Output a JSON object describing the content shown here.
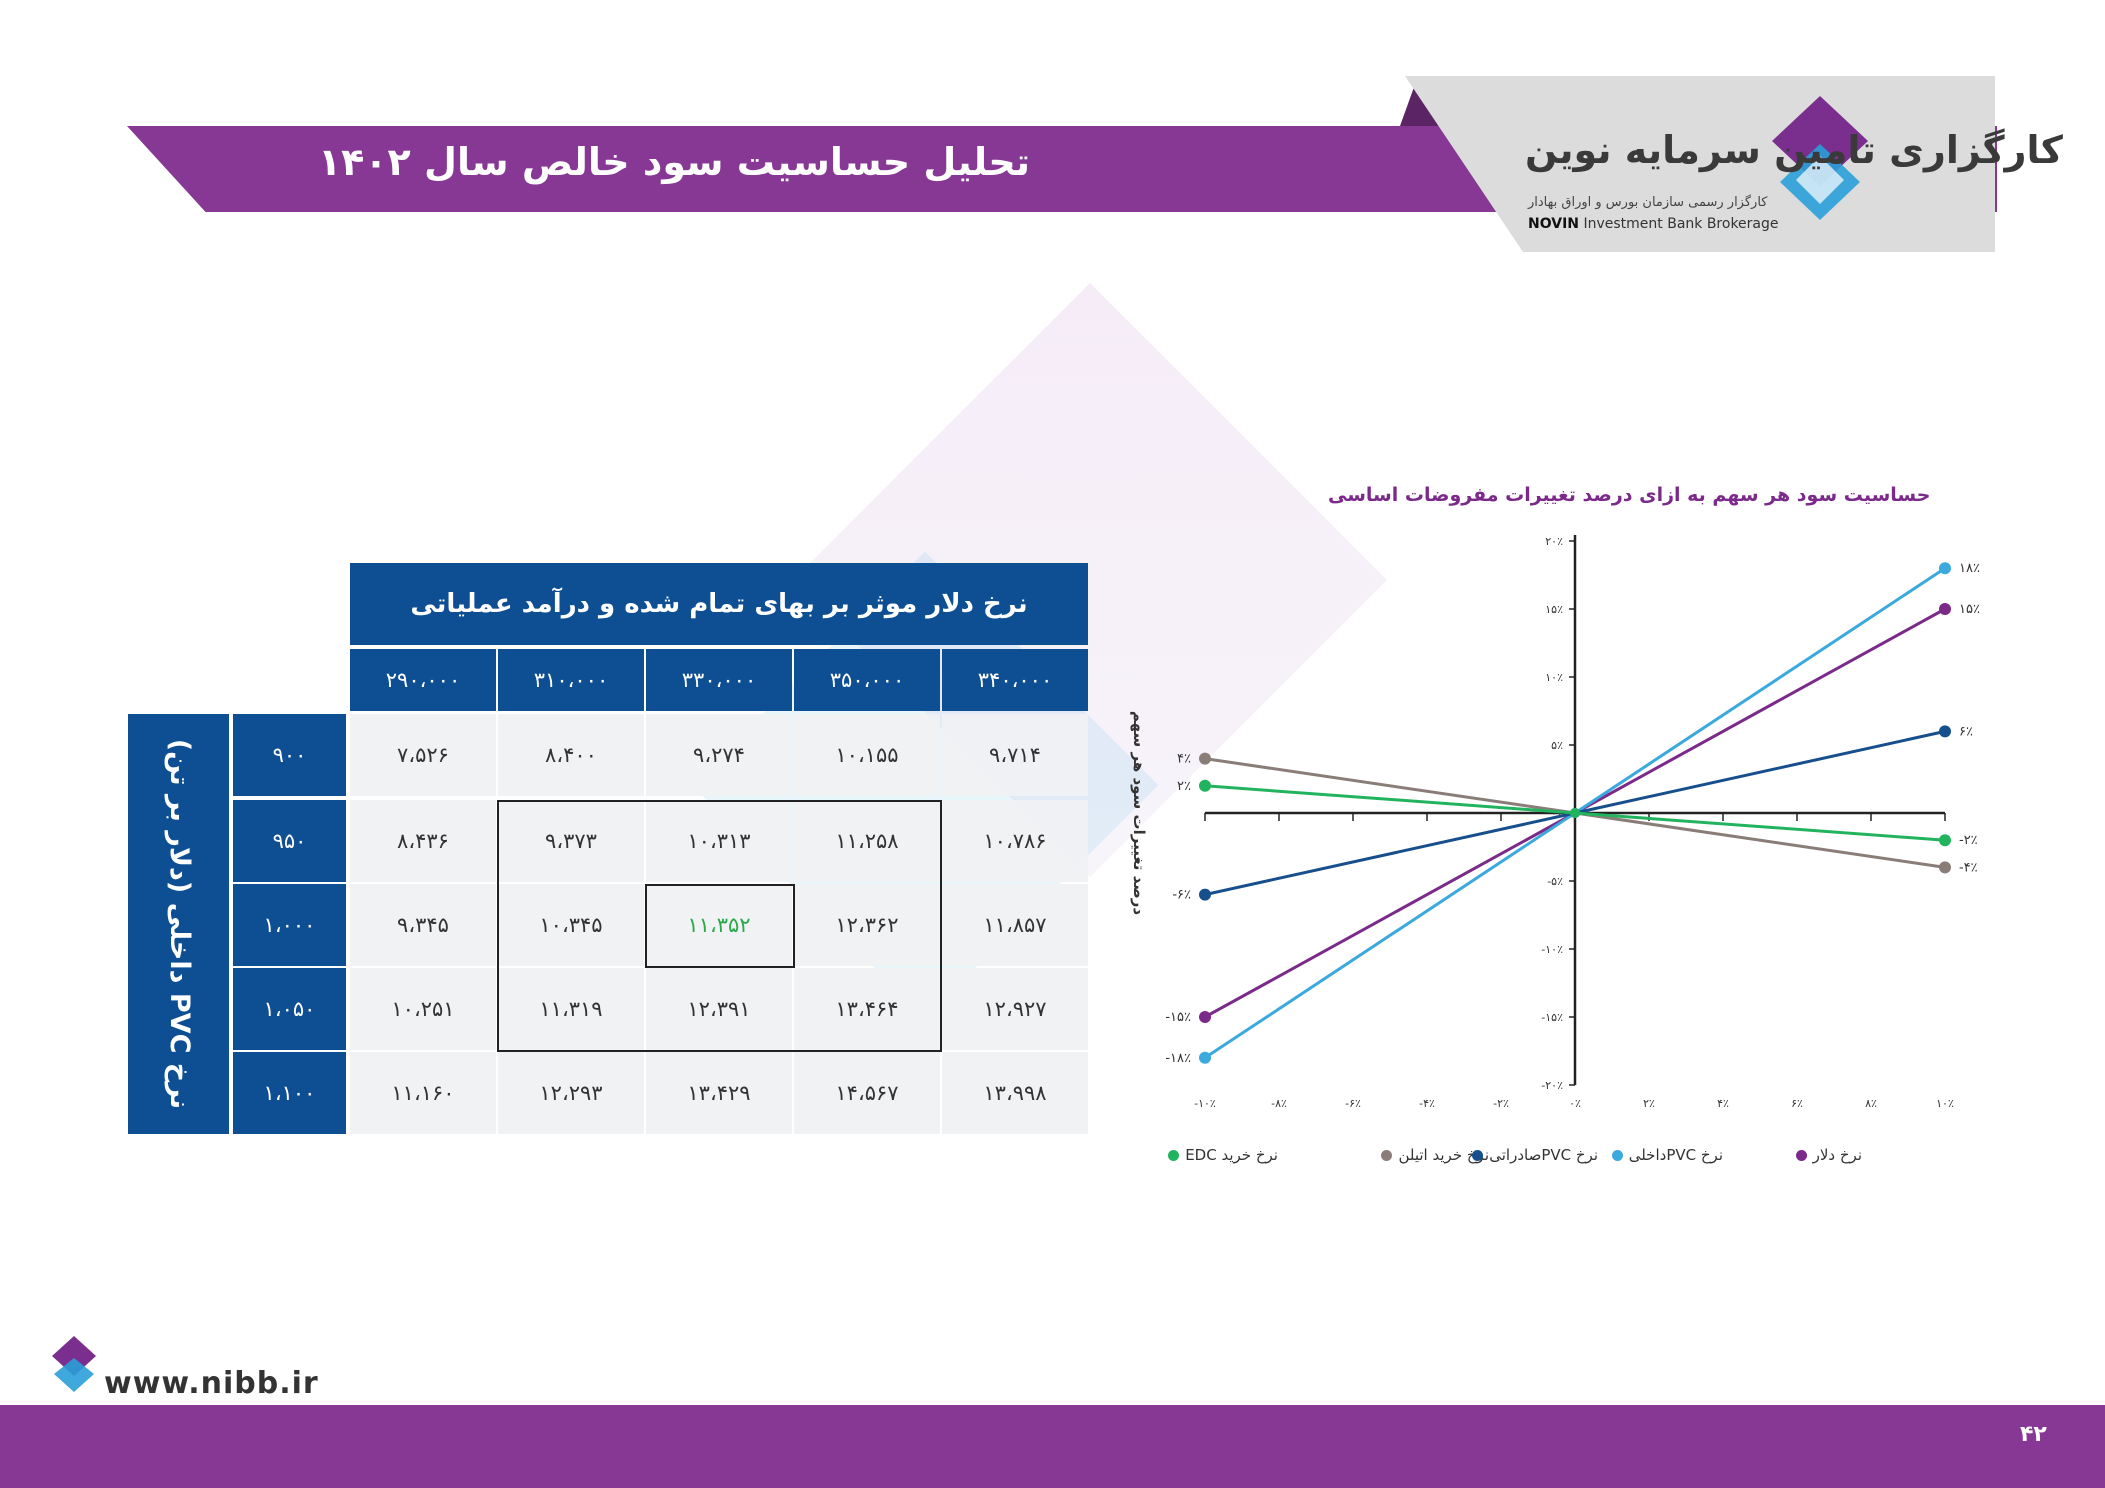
{
  "header": {
    "title": "تحلیل حساسیت سود خالص سال ۱۴۰۲"
  },
  "logo": {
    "name": "کارگزاری تامین سرمایه نوین",
    "subtitle": "کارگزار رسمی سازمان بورس و اوراق بهادار",
    "english_bold": "NOVIN",
    "english_rest": "Investment Bank Brokerage"
  },
  "footer": {
    "url": "www.nibb.ir",
    "page": "۴۲"
  },
  "table": {
    "header": "نرخ دلار موثر بر بهای تمام شده و درآمد عملیاتی",
    "row_axis_label": "نرخ PVC داخلی (دلار بر تن)",
    "columns": [
      "۲۹۰،۰۰۰",
      "۳۱۰،۰۰۰",
      "۳۳۰،۰۰۰",
      "۳۵۰،۰۰۰",
      "۳۴۰،۰۰۰"
    ],
    "rows": [
      {
        "label": "۹۰۰",
        "cells": [
          "۷،۵۲۶",
          "۸،۴۰۰",
          "۹،۲۷۴",
          "۱۰،۱۵۵",
          "۹،۷۱۴"
        ]
      },
      {
        "label": "۹۵۰",
        "cells": [
          "۸،۴۳۶",
          "۹،۳۷۳",
          "۱۰،۳۱۳",
          "۱۱،۲۵۸",
          "۱۰،۷۸۶"
        ]
      },
      {
        "label": "۱،۰۰۰",
        "cells": [
          "۹،۳۴۵",
          "۱۰،۳۴۵",
          "۱۱،۳۵۲",
          "۱۲،۳۶۲",
          "۱۱،۸۵۷"
        ]
      },
      {
        "label": "۱،۰۵۰",
        "cells": [
          "۱۰،۲۵۱",
          "۱۱،۳۱۹",
          "۱۲،۳۹۱",
          "۱۳،۴۶۴",
          "۱۲،۹۲۷"
        ]
      },
      {
        "label": "۱،۱۰۰",
        "cells": [
          "۱۱،۱۶۰",
          "۱۲،۲۹۳",
          "۱۳،۴۲۹",
          "۱۴،۵۶۷",
          "۱۳،۹۹۸"
        ]
      }
    ]
  },
  "chart_data": {
    "type": "line",
    "title": "حساسیت سود هر سهم به ازای درصد تغییرات مفروضات اساسی",
    "ylabel": "درصد تغییرات سود هر سهم",
    "xlabel": "",
    "x": [
      -10,
      0,
      10
    ],
    "xlim": [
      -10,
      10
    ],
    "ylim": [
      -20,
      20
    ],
    "x_ticks": [
      -10,
      -8,
      -6,
      -4,
      -2,
      0,
      2,
      4,
      6,
      8,
      10
    ],
    "x_tick_labels": [
      "-۱۰٪",
      "-۸٪",
      "-۶٪",
      "-۴٪",
      "-۲٪",
      "۰٪",
      "۲٪",
      "۴٪",
      "۶٪",
      "۸٪",
      "۱۰٪"
    ],
    "y_ticks": [
      20,
      15,
      10,
      5,
      0,
      -5,
      -10,
      -15,
      -20
    ],
    "y_tick_labels": [
      "۲۰٪",
      "۱۵٪",
      "۱۰٪",
      "۵٪",
      "۰٪",
      "-۵٪",
      "-۱۰٪",
      "-۱۵٪",
      "-۲۰٪"
    ],
    "legend_position": "bottom",
    "series": [
      {
        "name": "نرخ دلار",
        "color": "#7b2a8a",
        "values": [
          -15,
          0,
          15
        ],
        "labels": [
          "-۱۵٪",
          "",
          "۱۵٪"
        ]
      },
      {
        "name": "نرخ PVCداخلی",
        "color": "#3ba9de",
        "values": [
          -18,
          0,
          18
        ],
        "labels": [
          "-۱۸٪",
          "",
          "۱۸٪"
        ]
      },
      {
        "name": "نرخ PVCصادراتی",
        "color": "#164f8c",
        "values": [
          -6,
          0,
          6
        ],
        "labels": [
          "-۶٪",
          "",
          "۶٪"
        ]
      },
      {
        "name": "نرخ خرید اتیلن",
        "color": "#8a7d78",
        "values": [
          4,
          0,
          -4
        ],
        "labels": [
          "۴٪",
          "",
          "-۴٪"
        ]
      },
      {
        "name": "نرخ خرید EDC",
        "color": "#22b35e",
        "values": [
          2,
          0,
          -2
        ],
        "labels": [
          "۲٪",
          "",
          "-۲٪"
        ]
      }
    ]
  }
}
